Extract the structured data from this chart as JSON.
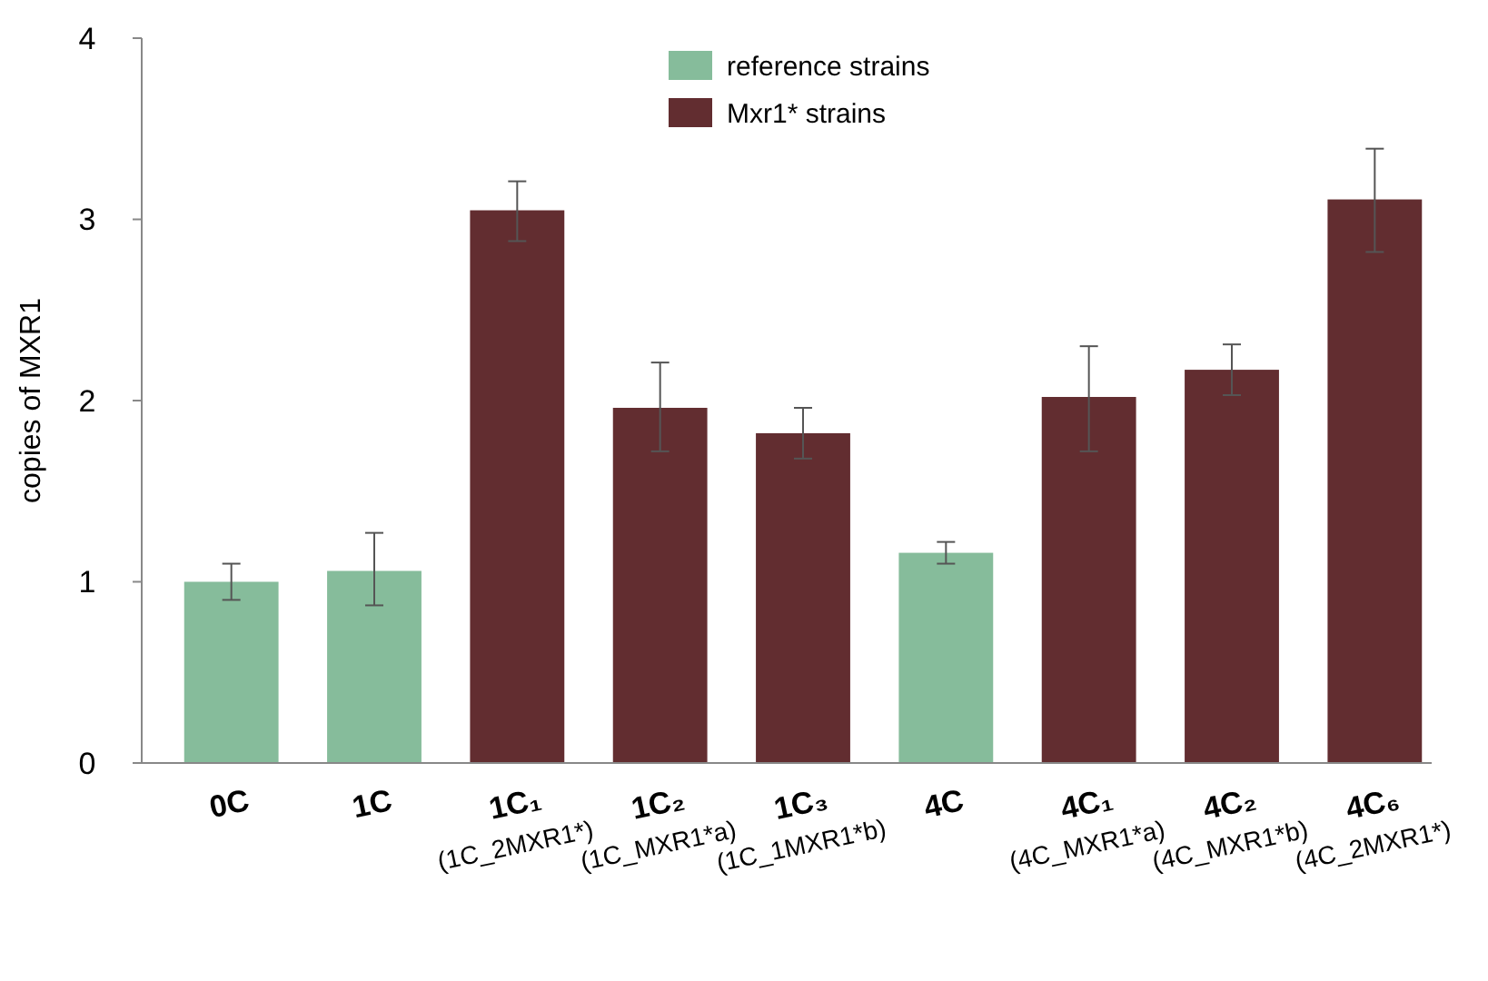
{
  "chart_data": {
    "type": "bar",
    "ylabel": "copies of MXR1",
    "categories": [
      "0C",
      "1C",
      "1C₁\n(1C_2MXR1*)",
      "1C₂\n(1C_MXR1*a)",
      "1C₃\n(1C_1MXR1*b)",
      "4C",
      "4C₁\n(4C_MXR1*a)",
      "4C₂\n(4C_MXR1*b)",
      "4C₆\n(4C_2MXR1*)"
    ],
    "series": [
      {
        "name": "reference strains",
        "color": "#86bc9b",
        "values": [
          1.0,
          1.06,
          null,
          null,
          null,
          1.16,
          null,
          null,
          null
        ],
        "errors": [
          [
            0.9,
            1.1
          ],
          [
            0.87,
            1.27
          ],
          null,
          null,
          null,
          [
            1.1,
            1.22
          ],
          null,
          null,
          null
        ]
      },
      {
        "name": "Mxr1* strains",
        "color": "#622d30",
        "values": [
          null,
          null,
          3.05,
          1.96,
          1.82,
          null,
          2.02,
          2.17,
          3.11
        ],
        "errors": [
          null,
          null,
          [
            2.88,
            3.21
          ],
          [
            1.72,
            2.21
          ],
          [
            1.68,
            1.96
          ],
          null,
          [
            1.72,
            2.3
          ],
          [
            2.03,
            2.31
          ],
          [
            2.82,
            3.39
          ]
        ]
      }
    ],
    "ylim": [
      0,
      4
    ],
    "yticks": [
      0,
      1,
      2,
      3,
      4
    ],
    "grid": false,
    "legend": "top"
  }
}
